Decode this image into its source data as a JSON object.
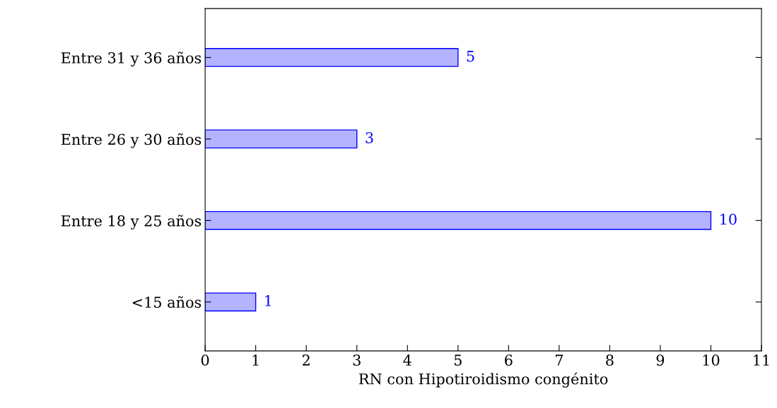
{
  "chart_data": {
    "type": "bar",
    "orientation": "horizontal",
    "xlabel": "RN con Hipotiroidismo congénito",
    "categories": [
      "Entre 31 y 36 años",
      "Entre 26 y 30 años",
      "Entre 18 y 25 años",
      "<15 años"
    ],
    "values": [
      5,
      3,
      10,
      1
    ],
    "color": "#b3b3ff",
    "xlim": [
      0,
      11
    ],
    "xticks": [
      0,
      1,
      2,
      3,
      4,
      5,
      6,
      7,
      8,
      9,
      10,
      11
    ],
    "data_labels": true,
    "grid": false
  }
}
